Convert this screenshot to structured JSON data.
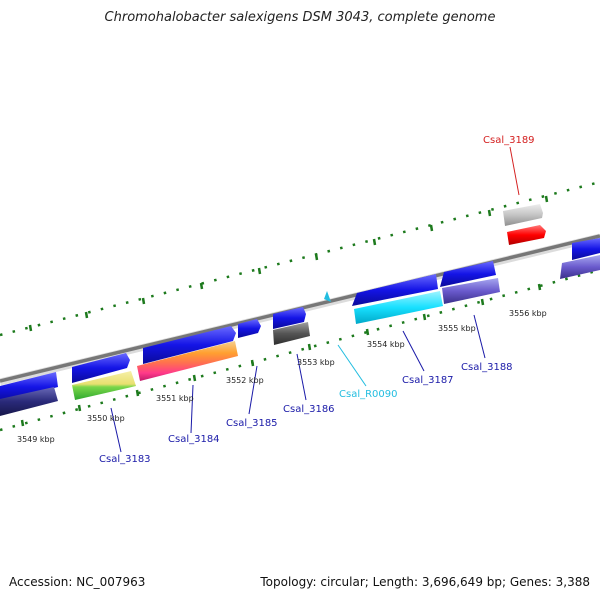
{
  "title": "Chromohalobacter salexigens DSM 3043, complete genome",
  "footer": {
    "accession": "Accession: NC_007963",
    "summary": "Topology: circular; Length: 3,696,649 bp; Genes: 3,388"
  },
  "tick_labels": [
    "3549 kbp",
    "3550 kbp",
    "3551 kbp",
    "3552 kbp",
    "3553 kbp",
    "3554 kbp",
    "3555 kbp",
    "3556 kbp"
  ],
  "gene_labels": [
    {
      "name": "Csal_3183",
      "color": "#1a1aa8"
    },
    {
      "name": "Csal_3184",
      "color": "#1a1aa8"
    },
    {
      "name": "Csal_3185",
      "color": "#1a1aa8"
    },
    {
      "name": "Csal_3186",
      "color": "#1a1aa8"
    },
    {
      "name": "Csal_R0090",
      "color": "#22bde0"
    },
    {
      "name": "Csal_3187",
      "color": "#1a1aa8"
    },
    {
      "name": "Csal_3188",
      "color": "#1a1aa8"
    },
    {
      "name": "Csal_3189",
      "color": "#d42020"
    }
  ],
  "colors": {
    "gene_blue": "#1515e0",
    "tick_green": "#1d7a1d",
    "backbone": "#777777",
    "rna_cyan": "#22d8ff",
    "highlight_red": "#ff1010"
  }
}
